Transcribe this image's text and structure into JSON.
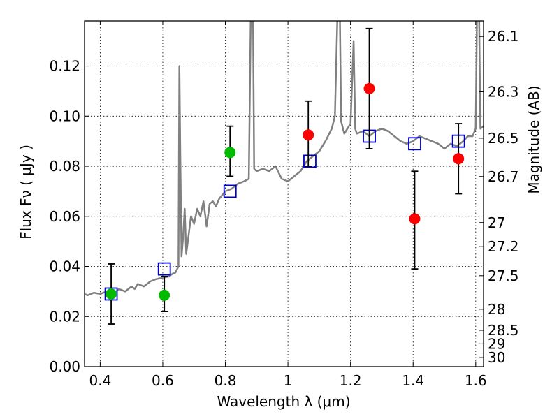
{
  "chart_data": {
    "type": "scatter",
    "xlabel": "Wavelength  λ (μm)",
    "ylabel": "Flux  Fν  ( μJy )",
    "ylabel_right": "Magnitude (AB)",
    "xlim": [
      0.35,
      1.625
    ],
    "ylim": [
      0.0,
      0.138
    ],
    "grid": true,
    "x_ticks": [
      {
        "v": 0.4,
        "label": "0.4"
      },
      {
        "v": 0.6,
        "label": "0.6"
      },
      {
        "v": 0.8,
        "label": "0.8"
      },
      {
        "v": 1.0,
        "label": "1"
      },
      {
        "v": 1.2,
        "label": "1.2"
      },
      {
        "v": 1.4,
        "label": "1.4"
      },
      {
        "v": 1.6,
        "label": "1.6"
      }
    ],
    "y_ticks": [
      {
        "v": 0.0,
        "label": "0.00"
      },
      {
        "v": 0.02,
        "label": "0.02"
      },
      {
        "v": 0.04,
        "label": "0.04"
      },
      {
        "v": 0.06,
        "label": "0.06"
      },
      {
        "v": 0.08,
        "label": "0.08"
      },
      {
        "v": 0.1,
        "label": "0.10"
      },
      {
        "v": 0.12,
        "label": "0.12"
      }
    ],
    "mag_ticks": [
      {
        "v": 0.1318,
        "label": "26.1"
      },
      {
        "v": 0.1097,
        "label": "26.3"
      },
      {
        "v": 0.0912,
        "label": "26.5"
      },
      {
        "v": 0.0759,
        "label": "26.7"
      },
      {
        "v": 0.0575,
        "label": "27"
      },
      {
        "v": 0.0479,
        "label": "27.2"
      },
      {
        "v": 0.0363,
        "label": "27.5"
      },
      {
        "v": 0.0229,
        "label": "28"
      },
      {
        "v": 0.0145,
        "label": "28.5"
      },
      {
        "v": 0.0091,
        "label": "29"
      },
      {
        "v": 0.0036,
        "label": "30"
      }
    ],
    "series": [
      {
        "kind": "line",
        "color": "#808080",
        "points": [
          [
            0.35,
            0.029
          ],
          [
            0.36,
            0.0285
          ],
          [
            0.38,
            0.0295
          ],
          [
            0.4,
            0.029
          ],
          [
            0.42,
            0.03
          ],
          [
            0.44,
            0.029
          ],
          [
            0.46,
            0.031
          ],
          [
            0.48,
            0.03
          ],
          [
            0.5,
            0.032
          ],
          [
            0.51,
            0.031
          ],
          [
            0.52,
            0.033
          ],
          [
            0.54,
            0.032
          ],
          [
            0.56,
            0.034
          ],
          [
            0.58,
            0.035
          ],
          [
            0.6,
            0.0355
          ],
          [
            0.62,
            0.036
          ],
          [
            0.63,
            0.037
          ],
          [
            0.64,
            0.0375
          ],
          [
            0.65,
            0.04
          ],
          [
            0.653,
            0.12
          ],
          [
            0.656,
            0.085
          ],
          [
            0.66,
            0.044
          ],
          [
            0.665,
            0.052
          ],
          [
            0.67,
            0.063
          ],
          [
            0.675,
            0.045
          ],
          [
            0.68,
            0.05
          ],
          [
            0.69,
            0.06
          ],
          [
            0.7,
            0.057
          ],
          [
            0.71,
            0.063
          ],
          [
            0.72,
            0.06
          ],
          [
            0.73,
            0.066
          ],
          [
            0.74,
            0.056
          ],
          [
            0.75,
            0.065
          ],
          [
            0.76,
            0.066
          ],
          [
            0.77,
            0.064
          ],
          [
            0.78,
            0.067
          ],
          [
            0.8,
            0.07
          ],
          [
            0.82,
            0.071
          ],
          [
            0.84,
            0.073
          ],
          [
            0.86,
            0.074
          ],
          [
            0.875,
            0.075
          ],
          [
            0.882,
            0.15
          ],
          [
            0.888,
            0.15
          ],
          [
            0.892,
            0.079
          ],
          [
            0.9,
            0.078
          ],
          [
            0.92,
            0.079
          ],
          [
            0.94,
            0.078
          ],
          [
            0.96,
            0.08
          ],
          [
            0.98,
            0.075
          ],
          [
            1.0,
            0.074
          ],
          [
            1.02,
            0.076
          ],
          [
            1.04,
            0.078
          ],
          [
            1.06,
            0.082
          ],
          [
            1.08,
            0.084
          ],
          [
            1.1,
            0.086
          ],
          [
            1.12,
            0.09
          ],
          [
            1.14,
            0.095
          ],
          [
            1.15,
            0.1
          ],
          [
            1.16,
            0.15
          ],
          [
            1.165,
            0.15
          ],
          [
            1.17,
            0.098
          ],
          [
            1.18,
            0.093
          ],
          [
            1.19,
            0.095
          ],
          [
            1.2,
            0.097
          ],
          [
            1.21,
            0.13
          ],
          [
            1.215,
            0.095
          ],
          [
            1.22,
            0.093
          ],
          [
            1.24,
            0.094
          ],
          [
            1.26,
            0.092
          ],
          [
            1.28,
            0.094
          ],
          [
            1.3,
            0.095
          ],
          [
            1.32,
            0.094
          ],
          [
            1.34,
            0.092
          ],
          [
            1.36,
            0.09
          ],
          [
            1.38,
            0.089
          ],
          [
            1.4,
            0.09
          ],
          [
            1.42,
            0.092
          ],
          [
            1.44,
            0.091
          ],
          [
            1.46,
            0.09
          ],
          [
            1.48,
            0.089
          ],
          [
            1.5,
            0.087
          ],
          [
            1.52,
            0.089
          ],
          [
            1.54,
            0.088
          ],
          [
            1.56,
            0.09
          ],
          [
            1.575,
            0.092
          ],
          [
            1.59,
            0.092
          ],
          [
            1.6,
            0.095
          ],
          [
            1.605,
            0.15
          ],
          [
            1.61,
            0.15
          ],
          [
            1.615,
            0.095
          ],
          [
            1.625,
            0.096
          ]
        ]
      },
      {
        "kind": "markers",
        "marker": "square",
        "color": "#0000cc",
        "points": [
          [
            0.435,
            0.029
          ],
          [
            0.605,
            0.039
          ],
          [
            0.815,
            0.07
          ],
          [
            1.07,
            0.082
          ],
          [
            1.26,
            0.092
          ],
          [
            1.405,
            0.089
          ],
          [
            1.545,
            0.09
          ]
        ]
      },
      {
        "kind": "errorbar",
        "color": "#000000",
        "points": [
          {
            "x": 0.435,
            "lo": 0.017,
            "hi": 0.041
          },
          {
            "x": 0.605,
            "lo": 0.022,
            "hi": 0.036
          },
          {
            "x": 0.815,
            "lo": 0.076,
            "hi": 0.096
          },
          {
            "x": 1.065,
            "lo": 0.08,
            "hi": 0.106
          },
          {
            "x": 1.26,
            "lo": 0.087,
            "hi": 0.135
          },
          {
            "x": 1.405,
            "lo": 0.039,
            "hi": 0.078
          },
          {
            "x": 1.545,
            "lo": 0.069,
            "hi": 0.097
          }
        ]
      },
      {
        "kind": "markers",
        "marker": "circle",
        "color": "#00bb00",
        "points": [
          [
            0.435,
            0.029
          ],
          [
            0.605,
            0.0285
          ],
          [
            0.815,
            0.0855
          ]
        ]
      },
      {
        "kind": "markers",
        "marker": "circle",
        "color": "#ff0000",
        "points": [
          [
            1.065,
            0.0925
          ],
          [
            1.26,
            0.111
          ],
          [
            1.405,
            0.059
          ],
          [
            1.545,
            0.083
          ]
        ]
      }
    ]
  }
}
